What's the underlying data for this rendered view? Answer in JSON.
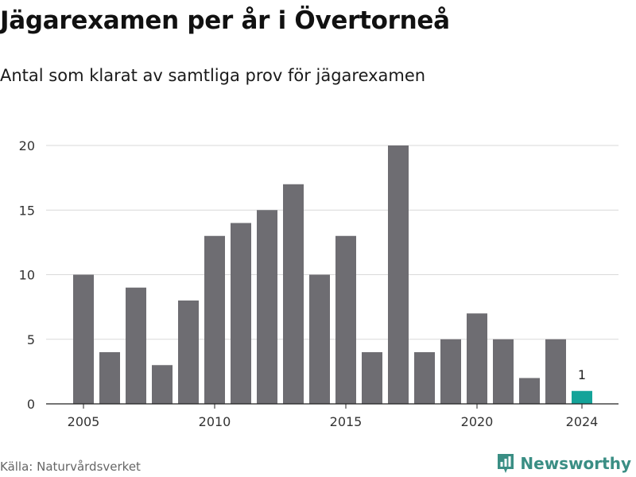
{
  "header": {
    "title": "Jägarexamen per år i Övertorneå",
    "subtitle": "Antal som klarat av samtliga prov för jägarexamen"
  },
  "footer": {
    "source": "Källa: Naturvårdsverket",
    "brand": "Newsworthy"
  },
  "colors": {
    "bar": "#6e6d72",
    "highlight": "#14a399",
    "grid": "#d9d9d9",
    "brand": "#3a8e84"
  },
  "icons": {
    "brand_logo": "newsworthy-logo-icon"
  },
  "chart_data": {
    "type": "bar",
    "x": [
      2005,
      2006,
      2007,
      2008,
      2009,
      2010,
      2011,
      2012,
      2013,
      2014,
      2015,
      2016,
      2017,
      2018,
      2019,
      2020,
      2021,
      2022,
      2023,
      2024
    ],
    "values": [
      10,
      4,
      9,
      3,
      8,
      13,
      14,
      15,
      17,
      10,
      13,
      4,
      20,
      4,
      5,
      7,
      5,
      2,
      5,
      1
    ],
    "x_ticks": [
      "2005",
      "2010",
      "2015",
      "2020",
      "2024"
    ],
    "y_ticks": [
      "0",
      "5",
      "10",
      "15",
      "20"
    ],
    "ylim": [
      0,
      20
    ],
    "highlight_year": 2024,
    "highlight_label": "1",
    "grid": true,
    "legend": "none"
  }
}
